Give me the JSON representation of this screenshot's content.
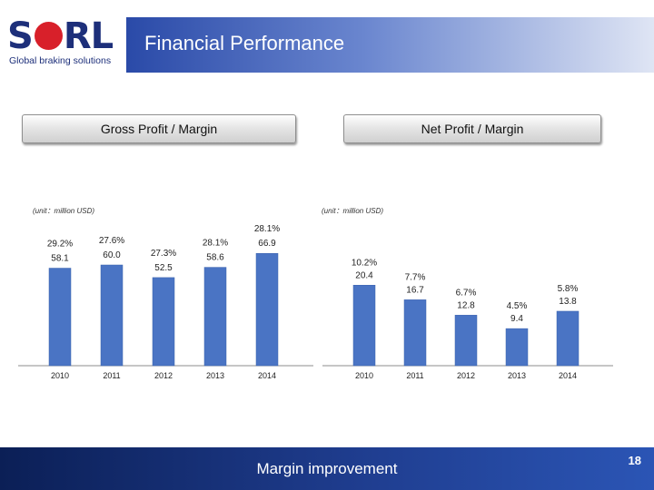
{
  "header": {
    "logo_text_left": "S",
    "logo_text_right": "RL",
    "logo_tagline": "Global braking solutions",
    "title": "Financial Performance",
    "logo_color": "#1d2f7a",
    "logo_accent": "#d8202a"
  },
  "pills": {
    "gross": "Gross Profit / Margin",
    "net": "Net Profit / Margin"
  },
  "units": {
    "left": "(unit：million USD)",
    "right": "(unit：million USD)"
  },
  "footer": {
    "text": "Margin improvement",
    "page": "18"
  },
  "chart_data": [
    {
      "type": "bar",
      "title": "Gross Profit / Margin",
      "ylabel": "million USD",
      "bar_color": "#4a74c4",
      "categories": [
        "2010",
        "2011",
        "2012",
        "2013",
        "2014"
      ],
      "values": [
        58.1,
        60.0,
        52.5,
        58.6,
        66.9
      ],
      "value_labels": [
        "58.1",
        "60.0",
        "52.5",
        "58.6",
        "66.9"
      ],
      "margin_labels": [
        "29.2%",
        "27.6%",
        "27.3%",
        "28.1%",
        "28.1%"
      ],
      "ylim": [
        0,
        70
      ]
    },
    {
      "type": "bar",
      "title": "Net Profit / Margin",
      "ylabel": "million USD",
      "bar_color": "#4a74c4",
      "categories": [
        "2010",
        "2011",
        "2012",
        "2013",
        "2014"
      ],
      "values": [
        20.4,
        16.7,
        12.8,
        9.4,
        13.8
      ],
      "value_labels": [
        "20.4",
        "16.7",
        "12.8",
        "9.4",
        "13.8"
      ],
      "margin_labels": [
        "10.2%",
        "7.7%",
        "6.7%",
        "4.5%",
        "5.8%"
      ],
      "ylim": [
        0,
        25
      ]
    }
  ]
}
